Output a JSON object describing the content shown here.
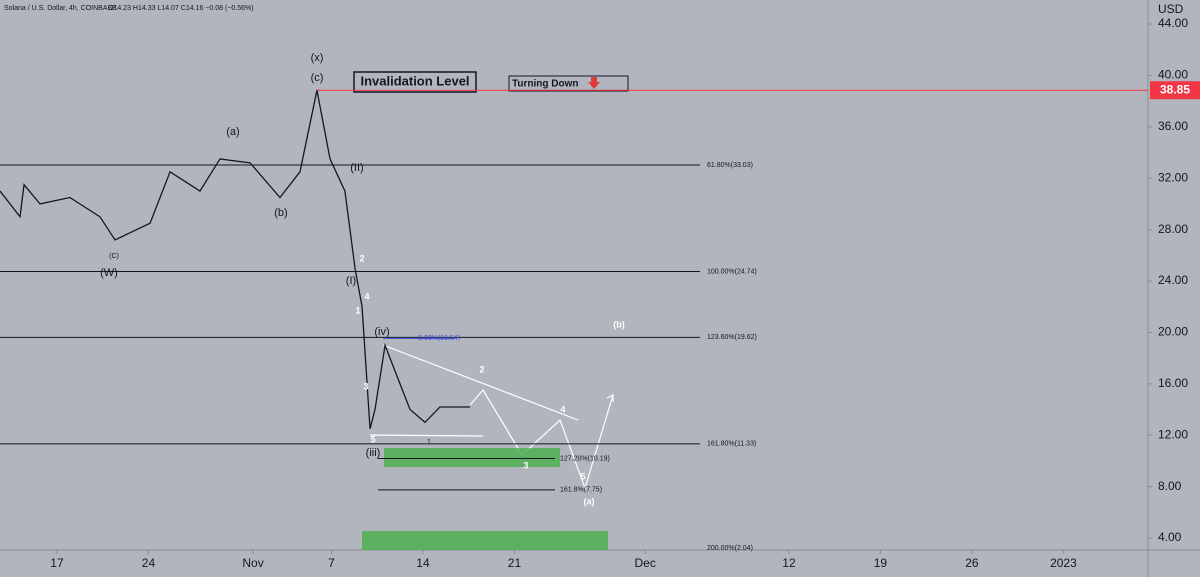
{
  "header": {
    "symbol": "Solana / U.S. Dollar, 4h, COINBASE",
    "ohlc": "O14.23 H14.33 L14.07 C14.16 −0.08 (−0.56%)"
  },
  "chart_data": {
    "type": "line",
    "currency": "USD",
    "x": [
      -4.36,
      -2.83,
      -2.52,
      -1.3,
      0.99,
      3.29,
      4.44,
      7.12,
      8.65,
      10.94,
      12.47,
      14.77,
      17.06,
      18.59,
      19.89,
      20.89,
      22.03,
      22.8,
      23.34,
      23.95,
      24.33,
      25.1,
      25.86,
      27.01,
      28.16,
      29.3,
      31.6
    ],
    "values": [
      31,
      29,
      31.5,
      30,
      30.5,
      29,
      27.2,
      28.5,
      32.5,
      31,
      33.5,
      33.2,
      30.5,
      32.5,
      38.85,
      33.5,
      31,
      25,
      22,
      12.5,
      14,
      19,
      17,
      14,
      13,
      14.2,
      14.2
    ],
    "color": "#131722",
    "xlim": [
      -4.36,
      83.47
    ],
    "ylim": [
      3.07,
      45.87
    ],
    "xticks": [
      {
        "value": 0,
        "label": "17"
      },
      {
        "value": 7,
        "label": "24"
      },
      {
        "value": 15,
        "label": "Nov"
      },
      {
        "value": 21,
        "label": "7"
      },
      {
        "value": 28,
        "label": "14"
      },
      {
        "value": 35,
        "label": "21"
      },
      {
        "value": 45,
        "label": "Dec"
      },
      {
        "value": 56,
        "label": "12"
      },
      {
        "value": 63,
        "label": "19"
      },
      {
        "value": 70,
        "label": "26"
      },
      {
        "value": 77,
        "label": "2023"
      }
    ],
    "yticks": [
      {
        "value": 4,
        "label": "4.00"
      },
      {
        "value": 8,
        "label": "8.00"
      },
      {
        "value": 12,
        "label": "12.00"
      },
      {
        "value": 16,
        "label": "16.00"
      },
      {
        "value": 20,
        "label": "20.00"
      },
      {
        "value": 24,
        "label": "24.00"
      },
      {
        "value": 28,
        "label": "28.00"
      },
      {
        "value": 32,
        "label": "32.00"
      },
      {
        "value": 36,
        "label": "36.00"
      },
      {
        "value": 40,
        "label": "40.00"
      },
      {
        "value": 44,
        "label": "44.00"
      }
    ],
    "invalidation": {
      "value": 38.85,
      "color": "#f23645"
    },
    "fib_levels": [
      {
        "value": 33.03,
        "label": "61.80%(33.03)"
      },
      {
        "value": 24.74,
        "label": "100.00%(24.74)"
      },
      {
        "value": 19.62,
        "label": "123.60%(19.62)"
      },
      {
        "value": 11.33,
        "label": "161.80%(11.33)"
      },
      {
        "value": 10.19,
        "label": "127.20%(10.19)"
      },
      {
        "value": 7.75,
        "label": "161.8%(7.75)"
      },
      {
        "value": 19.54,
        "label": "0.00%(19.54)"
      },
      {
        "value": 2.04,
        "label": "200.00%(2.04)"
      }
    ],
    "zones": [
      {
        "low": 9.53,
        "high": 11.0,
        "color": "#4caf50"
      },
      {
        "low": 3.07,
        "high": 4.54,
        "color": "#4caf50"
      }
    ],
    "boxes": [
      "Invalidation Level",
      "Turning Down"
    ],
    "annotations": [
      "(x)",
      "(c)",
      "(a)",
      "(b)",
      "(II)",
      "(C)",
      "(W)",
      "2",
      "(I)",
      "4",
      "1",
      "(iv)",
      "3",
      "5",
      "1",
      "(iii)",
      "2",
      "3",
      "4",
      "5",
      "(a)",
      "(b)"
    ]
  }
}
